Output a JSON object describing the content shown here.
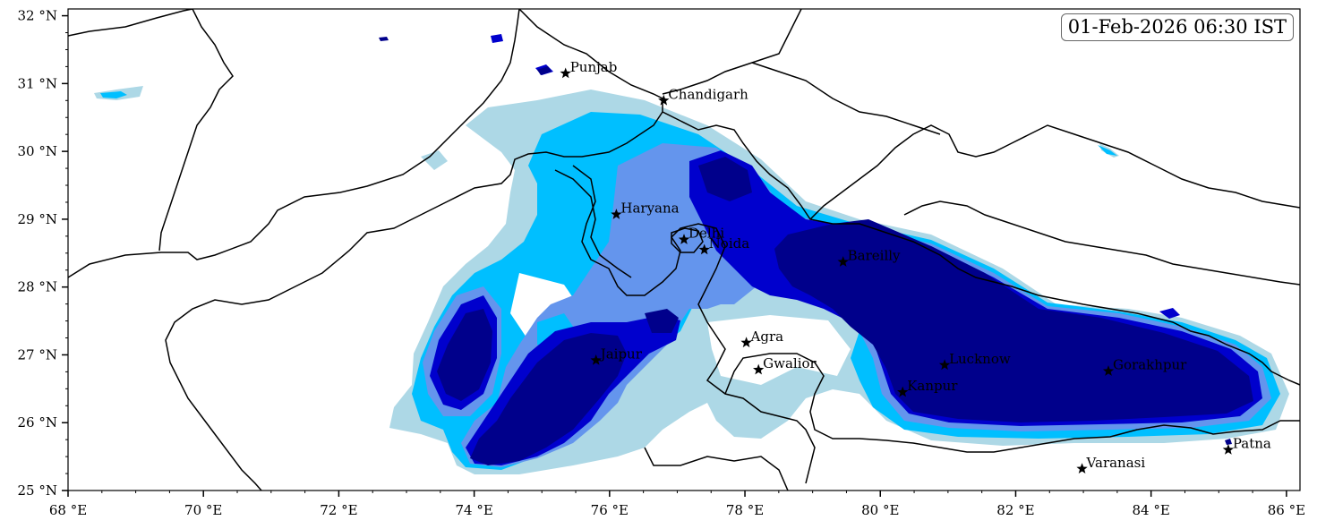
{
  "timestamp": "01-Feb-2026 06:30 IST",
  "colors": {
    "level1": "#add8e6",
    "level2": "#00bfff",
    "level3": "#6495ed",
    "level4": "#0000cd",
    "level5": "#00008b",
    "boundary": "#000000"
  },
  "axes": {
    "x_ticks": [
      {
        "value": 68,
        "label": "68 °E"
      },
      {
        "value": 70,
        "label": "70 °E"
      },
      {
        "value": 72,
        "label": "72 °E"
      },
      {
        "value": 74,
        "label": "74 °E"
      },
      {
        "value": 76,
        "label": "76 °E"
      },
      {
        "value": 78,
        "label": "78 °E"
      },
      {
        "value": 80,
        "label": "80 °E"
      },
      {
        "value": 82,
        "label": "82 °E"
      },
      {
        "value": 84,
        "label": "84 °E"
      },
      {
        "value": 86,
        "label": "86 °E"
      }
    ],
    "y_ticks": [
      {
        "value": 32,
        "label": "32 °N"
      },
      {
        "value": 31,
        "label": "31 °N"
      },
      {
        "value": 30,
        "label": "30 °N"
      },
      {
        "value": 29,
        "label": "29 °N"
      },
      {
        "value": 28,
        "label": "28 °N"
      },
      {
        "value": 27,
        "label": "27 °N"
      },
      {
        "value": 26,
        "label": "26 °N"
      },
      {
        "value": 25,
        "label": "25 °N"
      }
    ],
    "lon_range": [
      68,
      86.2
    ],
    "lat_range": [
      25,
      32.1
    ]
  },
  "cities": [
    {
      "name": "Punjab",
      "lon": 75.35,
      "lat": 31.15
    },
    {
      "name": "Chandigarh",
      "lon": 76.8,
      "lat": 30.75
    },
    {
      "name": "Haryana",
      "lon": 76.1,
      "lat": 29.07
    },
    {
      "name": "Delhi",
      "lon": 77.1,
      "lat": 28.7
    },
    {
      "name": "Noida",
      "lon": 77.4,
      "lat": 28.55
    },
    {
      "name": "Bareilly",
      "lon": 79.45,
      "lat": 28.37
    },
    {
      "name": "Agra",
      "lon": 78.02,
      "lat": 27.18
    },
    {
      "name": "Jaipur",
      "lon": 75.8,
      "lat": 26.92
    },
    {
      "name": "Gwalior",
      "lon": 78.2,
      "lat": 26.78
    },
    {
      "name": "Lucknow",
      "lon": 80.95,
      "lat": 26.85
    },
    {
      "name": "Kanpur",
      "lon": 80.33,
      "lat": 26.45
    },
    {
      "name": "Gorakhpur",
      "lon": 83.37,
      "lat": 26.76
    },
    {
      "name": "Varanasi",
      "lon": 82.98,
      "lat": 25.32
    },
    {
      "name": "Patna",
      "lon": 85.14,
      "lat": 25.6
    }
  ]
}
